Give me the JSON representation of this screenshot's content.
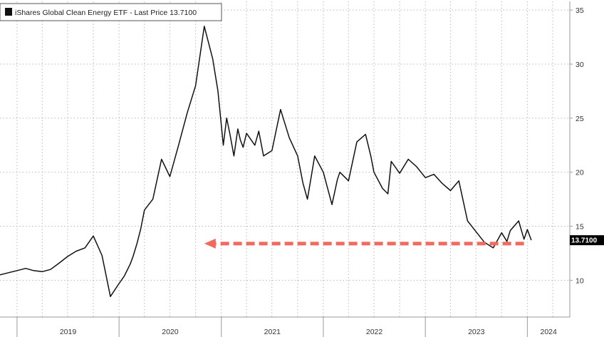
{
  "chart_data": {
    "type": "line",
    "title": "",
    "xlabel": "",
    "ylabel": "",
    "legend": {
      "label": "iShares Global Clean Energy ETF - Last Price 13.7100",
      "placement": "top-left"
    },
    "x_ticks": [
      "2019",
      "2020",
      "2021",
      "2022",
      "2023",
      "2024"
    ],
    "y_ticks": [
      10,
      15,
      20,
      25,
      30,
      35
    ],
    "xlim": [
      "2018-11-01",
      "2024-06-01"
    ],
    "ylim": [
      6.6,
      35.8
    ],
    "y_axis_side": "right",
    "grid": true,
    "last_price_label": "13.7100",
    "last_price_value": 13.71,
    "series": [
      {
        "name": "iShares Global Clean Energy ETF",
        "color": "#111111",
        "x": [
          "2018-11-01",
          "2018-12-01",
          "2019-01-01",
          "2019-02-01",
          "2019-03-01",
          "2019-04-01",
          "2019-05-01",
          "2019-06-01",
          "2019-07-01",
          "2019-08-01",
          "2019-09-01",
          "2019-10-01",
          "2019-11-01",
          "2019-12-01",
          "2020-01-01",
          "2020-01-20",
          "2020-02-10",
          "2020-02-20",
          "2020-03-05",
          "2020-03-18",
          "2020-04-01",
          "2020-05-01",
          "2020-06-01",
          "2020-07-01",
          "2020-08-01",
          "2020-09-01",
          "2020-10-01",
          "2020-11-01",
          "2020-12-01",
          "2020-12-20",
          "2021-01-08",
          "2021-01-20",
          "2021-02-01",
          "2021-02-15",
          "2021-03-01",
          "2021-03-10",
          "2021-03-20",
          "2021-04-01",
          "2021-05-01",
          "2021-05-15",
          "2021-06-01",
          "2021-07-01",
          "2021-08-01",
          "2021-09-01",
          "2021-10-01",
          "2021-10-20",
          "2021-11-05",
          "2021-11-20",
          "2021-12-01",
          "2022-01-01",
          "2022-02-01",
          "2022-02-20",
          "2022-03-01",
          "2022-04-01",
          "2022-05-01",
          "2022-06-01",
          "2022-06-20",
          "2022-07-01",
          "2022-08-01",
          "2022-08-20",
          "2022-09-01",
          "2022-10-01",
          "2022-11-01",
          "2022-12-01",
          "2023-01-01",
          "2023-02-01",
          "2023-03-01",
          "2023-04-01",
          "2023-05-01",
          "2023-06-01",
          "2023-07-01",
          "2023-08-01",
          "2023-09-01",
          "2023-10-01",
          "2023-10-20",
          "2023-11-01",
          "2023-12-01",
          "2023-12-20",
          "2024-01-01",
          "2024-01-15"
        ],
        "y": [
          10.5,
          10.7,
          10.9,
          11.1,
          10.9,
          10.8,
          11.0,
          11.6,
          12.2,
          12.7,
          13.0,
          14.1,
          12.3,
          8.5,
          9.7,
          10.4,
          11.5,
          12.2,
          13.4,
          14.7,
          16.5,
          17.5,
          21.2,
          19.6,
          22.5,
          25.5,
          28.0,
          33.5,
          30.5,
          27.5,
          22.5,
          25.0,
          23.5,
          21.5,
          24.0,
          23.0,
          22.3,
          23.6,
          22.5,
          23.8,
          21.5,
          22.0,
          25.8,
          23.2,
          21.5,
          19.0,
          17.5,
          19.8,
          21.5,
          20.0,
          17.0,
          19.3,
          20.0,
          19.2,
          22.8,
          23.5,
          21.5,
          20.0,
          18.5,
          18.0,
          21.0,
          19.9,
          21.2,
          20.5,
          19.5,
          19.8,
          19.0,
          18.3,
          19.2,
          15.5,
          14.5,
          13.5,
          13.0,
          14.4,
          13.6,
          14.6,
          15.5,
          13.8,
          14.7,
          13.71
        ]
      }
    ],
    "annotations": [
      {
        "type": "dashed-arrow",
        "color": "#f06a5d",
        "level": 13.4,
        "from_date": "2023-12-20",
        "to_date": "2020-11-01"
      }
    ]
  }
}
